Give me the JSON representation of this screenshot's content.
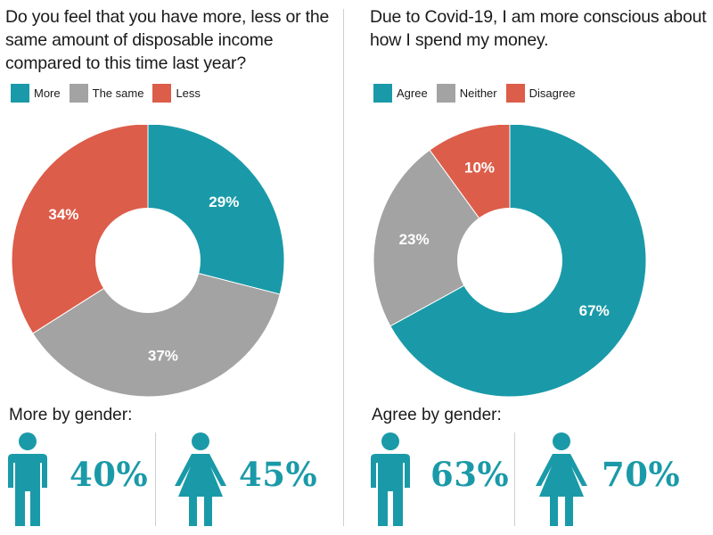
{
  "colors": {
    "teal": "#1a9aa8",
    "gray": "#a3a3a3",
    "red": "#dc5d4a"
  },
  "chart_data": [
    {
      "type": "pie",
      "title": "Do you feel that you have more, less or the same amount of disposable income compared to this time last year?",
      "categories": [
        "More",
        "The same",
        "Less"
      ],
      "values": [
        29,
        37,
        34
      ],
      "labels": [
        "29%",
        "37%",
        "34%"
      ],
      "colors": [
        "#1a9aa8",
        "#a3a3a3",
        "#dc5d4a"
      ],
      "legend_position": "top-left",
      "donut": true
    },
    {
      "type": "pie",
      "title": "Due to Covid-19, I am more conscious about how I spend my money.",
      "categories": [
        "Agree",
        "Neither",
        "Disagree"
      ],
      "values": [
        67,
        23,
        10
      ],
      "labels": [
        "67%",
        "23%",
        "10%"
      ],
      "colors": [
        "#1a9aa8",
        "#a3a3a3",
        "#dc5d4a"
      ],
      "legend_position": "top-left",
      "donut": true
    }
  ],
  "gender": [
    {
      "title": "More by gender:",
      "male_value": "40%",
      "female_value": "45%",
      "male_icon": "male-person-icon",
      "female_icon": "female-person-icon"
    },
    {
      "title": "Agree by gender:",
      "male_value": "63%",
      "female_value": "70%",
      "male_icon": "male-person-icon",
      "female_icon": "female-person-icon"
    }
  ]
}
